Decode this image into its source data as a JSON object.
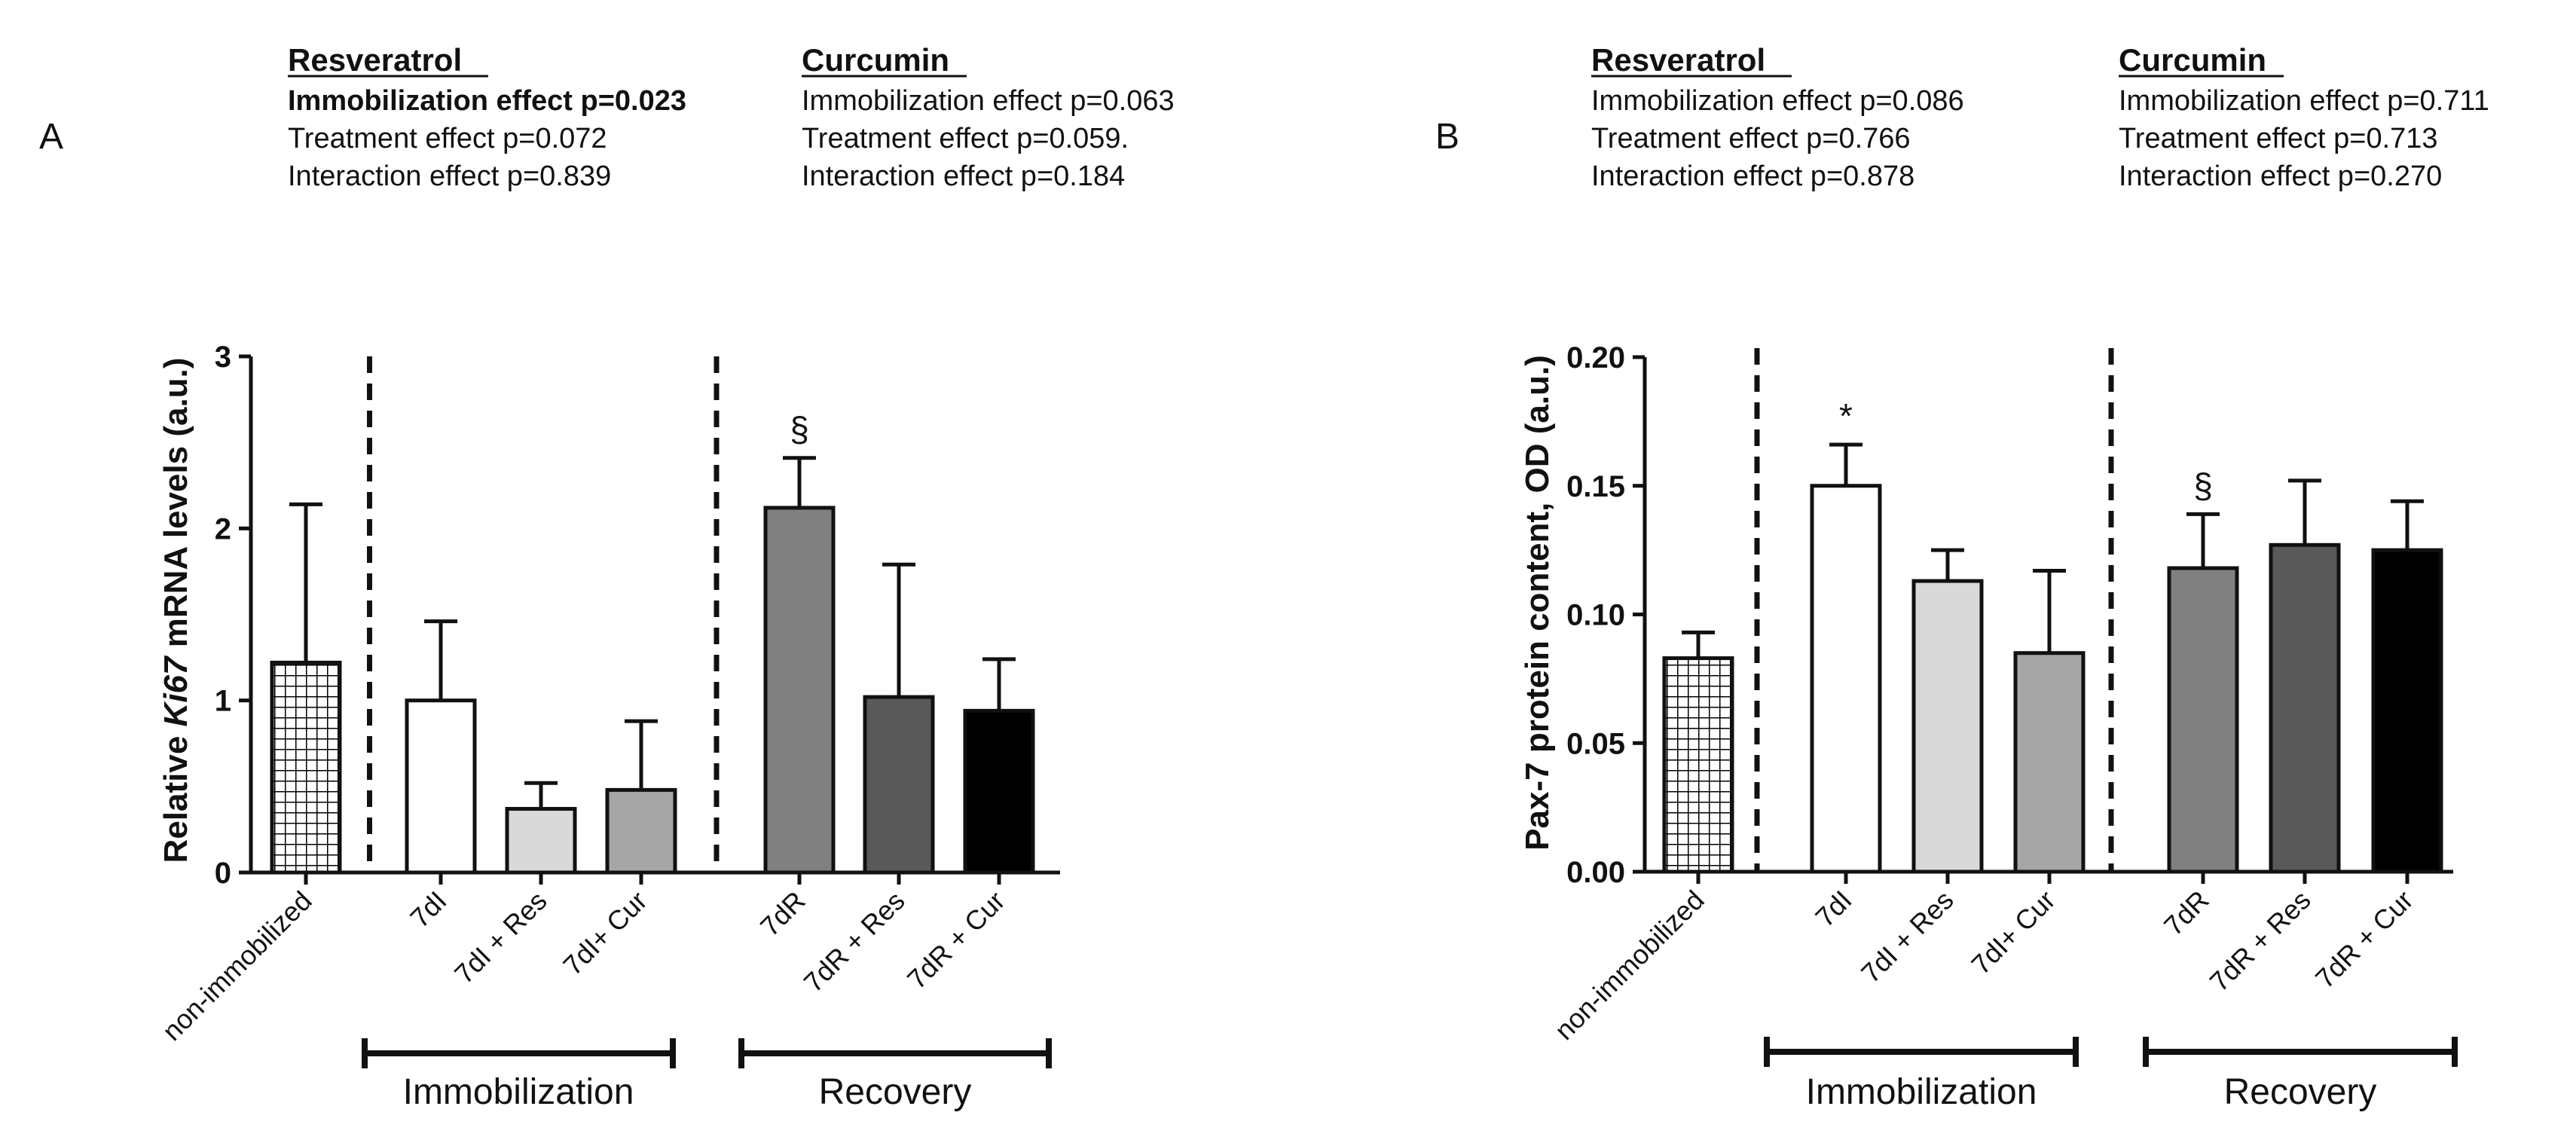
{
  "panels": [
    {
      "letter": "A",
      "stats": [
        {
          "title": "Resveratrol",
          "lines": [
            {
              "text": "Immobilization effect p=0.023",
              "bold": true
            },
            {
              "text": "Treatment effect p=0.072",
              "bold": false
            },
            {
              "text": "Interaction effect p=0.839",
              "bold": false
            }
          ]
        },
        {
          "title": "Curcumin",
          "lines": [
            {
              "text": "Immobilization effect p=0.063",
              "bold": false
            },
            {
              "text": "Treatment effect p=0.059.",
              "bold": false
            },
            {
              "text": "Interaction effect p=0.184",
              "bold": false
            }
          ]
        }
      ],
      "groups": [
        "Immobilization",
        "Recovery"
      ]
    },
    {
      "letter": "B",
      "stats": [
        {
          "title": "Resveratrol",
          "lines": [
            {
              "text": "Immobilization effect p=0.086",
              "bold": false
            },
            {
              "text": "Treatment effect p=0.766",
              "bold": false
            },
            {
              "text": "Interaction effect p=0.878",
              "bold": false
            }
          ]
        },
        {
          "title": "Curcumin",
          "lines": [
            {
              "text": "Immobilization effect p=0.711",
              "bold": false
            },
            {
              "text": "Treatment effect p=0.713",
              "bold": false
            },
            {
              "text": "Interaction effect p=0.270",
              "bold": false
            }
          ]
        }
      ],
      "groups": [
        "Immobilization",
        "Recovery"
      ]
    }
  ],
  "chart_data": [
    {
      "type": "bar",
      "panel": "A",
      "ylabel_parts": [
        "Relative ",
        "Ki67",
        " mRNA levels (a.u.)"
      ],
      "ylim": [
        0,
        3
      ],
      "yticks": [
        "0",
        "1",
        "2",
        "3"
      ],
      "categories": [
        "non-immobilized",
        "7dI",
        "7dI + Res",
        "7dI+ Cur",
        "7dR",
        "7dR + Res",
        "7dR + Cur"
      ],
      "values": [
        1.22,
        1.0,
        0.37,
        0.48,
        2.12,
        1.02,
        0.94
      ],
      "errors": [
        0.92,
        0.46,
        0.15,
        0.4,
        0.29,
        0.77,
        0.3
      ],
      "fills": [
        "hatch",
        "#ffffff",
        "#d9d9d9",
        "#a6a6a6",
        "#808080",
        "#595959",
        "#000000"
      ],
      "annotations": [
        {
          "index": 4,
          "text": "§"
        }
      ],
      "dividers_after": [
        0,
        3
      ]
    },
    {
      "type": "bar",
      "panel": "B",
      "ylabel_parts": [
        "Pax-7 protein content, OD (a.u.)"
      ],
      "ylim": [
        0,
        0.2
      ],
      "yticks": [
        "0.00",
        "0.05",
        "0.10",
        "0.15",
        "0.20"
      ],
      "categories": [
        "non-immobilized",
        "7dI",
        "7dI + Res",
        "7dI+ Cur",
        "7dR",
        "7dR + Res",
        "7dR + Cur"
      ],
      "values": [
        0.083,
        0.15,
        0.113,
        0.085,
        0.118,
        0.127,
        0.125
      ],
      "errors": [
        0.01,
        0.016,
        0.012,
        0.032,
        0.021,
        0.025,
        0.019
      ],
      "fills": [
        "hatch",
        "#ffffff",
        "#d9d9d9",
        "#a6a6a6",
        "#808080",
        "#595959",
        "#000000"
      ],
      "annotations": [
        {
          "index": 1,
          "text": "*"
        },
        {
          "index": 4,
          "text": "§"
        }
      ],
      "dividers_after": [
        0,
        3
      ]
    }
  ]
}
